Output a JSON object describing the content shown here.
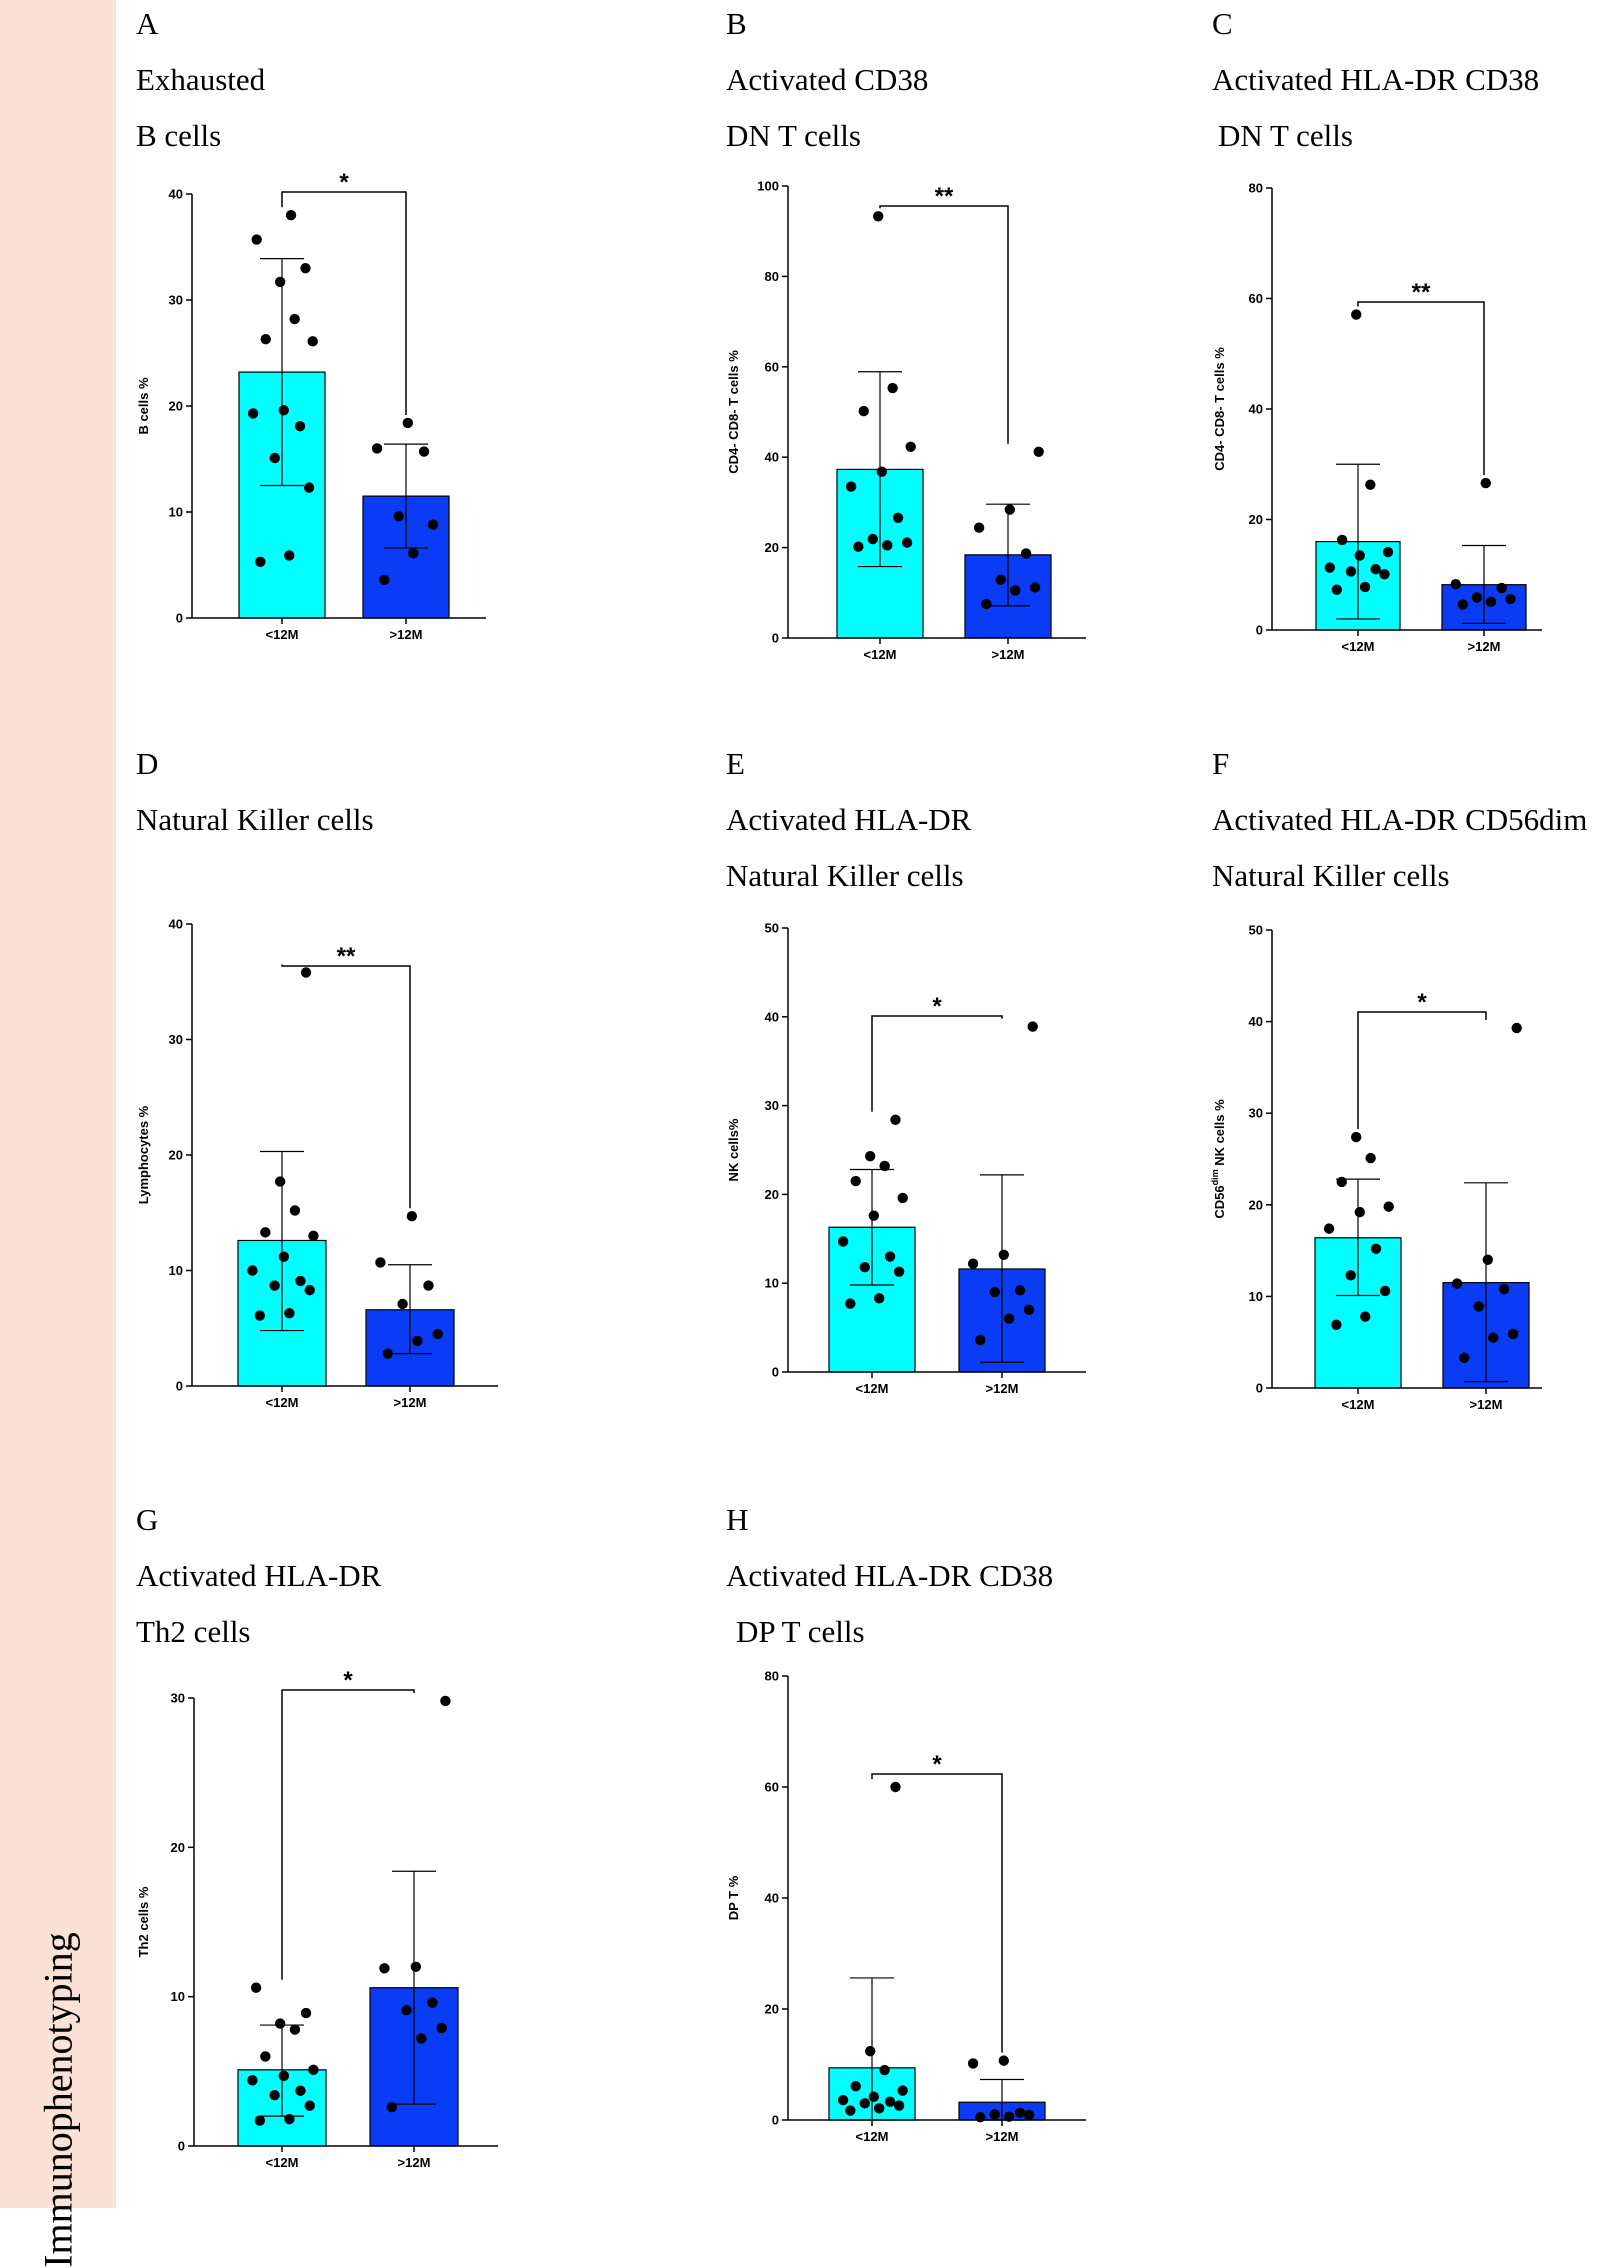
{
  "side_label": "Immunophenotyping",
  "colors": {
    "lt12": "#00ffff",
    "gt12": "#0a3cf5",
    "background": "#fae2d6"
  },
  "chart_data": [
    {
      "type": "bar",
      "letter": "A",
      "title_line1": "Exhausted",
      "title_line2": "B cells",
      "ylabel": "B cells %",
      "yticks": [
        0,
        10,
        20,
        30,
        40
      ],
      "ylim": [
        0,
        40
      ],
      "categories": [
        "<12M",
        ">12M"
      ],
      "series": [
        {
          "name": "<12M",
          "value": 23.2,
          "error": [
            12.5,
            33.9
          ],
          "points": [
            5.3,
            5.9,
            12.3,
            15.1,
            18.1,
            19.3,
            19.6,
            26.1,
            26.3,
            28.2,
            31.7,
            33.0,
            35.7,
            38.0
          ]
        },
        {
          "name": ">12M",
          "value": 11.5,
          "error": [
            6.6,
            16.4
          ],
          "points": [
            3.6,
            6.1,
            8.8,
            9.6,
            15.7,
            16.0,
            18.4
          ]
        }
      ],
      "significance": "*"
    },
    {
      "type": "bar",
      "letter": "B",
      "title_line1": "Activated CD38",
      "title_line2": "DN T cells",
      "ylabel": "CD4- CD8- T cells %",
      "yticks": [
        0,
        20,
        40,
        60,
        80,
        100
      ],
      "ylim": [
        0,
        100
      ],
      "categories": [
        "<12M",
        ">12M"
      ],
      "series": [
        {
          "name": "<12M",
          "value": 37.3,
          "error": [
            15.8,
            58.9
          ],
          "points": [
            20.2,
            20.5,
            21.1,
            21.9,
            26.6,
            33.5,
            36.8,
            42.3,
            50.2,
            55.3,
            93.3
          ]
        },
        {
          "name": ">12M",
          "value": 18.4,
          "error": [
            7.1,
            29.6
          ],
          "points": [
            7.5,
            10.5,
            11.2,
            12.9,
            18.7,
            24.4,
            28.4,
            41.2
          ]
        }
      ],
      "significance": "**"
    },
    {
      "type": "bar",
      "letter": "C",
      "title_line1": "Activated HLA-DR CD38",
      "title_line2": "DN T cells",
      "ylabel": "CD4- CD8- T cells %",
      "yticks": [
        0,
        20,
        40,
        60,
        80
      ],
      "ylim": [
        0,
        80
      ],
      "categories": [
        "<12M",
        ">12M"
      ],
      "series": [
        {
          "name": "<12M",
          "value": 16.0,
          "error": [
            2.0,
            30.0
          ],
          "points": [
            7.3,
            7.8,
            10.1,
            10.6,
            11.0,
            11.3,
            13.5,
            14.1,
            16.3,
            26.3,
            57.1
          ]
        },
        {
          "name": ">12M",
          "value": 8.2,
          "error": [
            1.2,
            15.3
          ],
          "points": [
            4.6,
            5.1,
            5.6,
            5.9,
            7.6,
            8.3,
            26.6
          ]
        }
      ],
      "significance": "**"
    },
    {
      "type": "bar",
      "letter": "D",
      "title_line1": "Natural Killer cells",
      "title_line2": "",
      "ylabel": "Lymphocytes %",
      "yticks": [
        0,
        10,
        20,
        30,
        40
      ],
      "ylim": [
        0,
        40
      ],
      "categories": [
        "<12M",
        ">12M"
      ],
      "series": [
        {
          "name": "<12M",
          "value": 12.6,
          "error": [
            4.8,
            20.3
          ],
          "points": [
            6.1,
            6.3,
            8.3,
            8.7,
            9.1,
            10.0,
            11.2,
            13.0,
            13.3,
            15.2,
            17.7,
            35.8
          ]
        },
        {
          "name": ">12M",
          "value": 6.6,
          "error": [
            2.8,
            10.5
          ],
          "points": [
            2.8,
            3.9,
            4.5,
            7.1,
            8.7,
            10.7,
            14.7
          ]
        }
      ],
      "significance": "**"
    },
    {
      "type": "bar",
      "letter": "E",
      "title_line1": "Activated HLA-DR",
      "title_line2": "Natural Killer cells",
      "ylabel": "NK cells%",
      "yticks": [
        0,
        10,
        20,
        30,
        40,
        50
      ],
      "ylim": [
        0,
        50
      ],
      "categories": [
        "<12M",
        ">12M"
      ],
      "series": [
        {
          "name": "<12M",
          "value": 16.3,
          "error": [
            9.8,
            22.8
          ],
          "points": [
            7.7,
            8.3,
            11.3,
            11.8,
            13.0,
            14.7,
            17.6,
            19.6,
            21.5,
            23.2,
            24.3,
            28.4
          ]
        },
        {
          "name": ">12M",
          "value": 11.6,
          "error": [
            1.1,
            22.2
          ],
          "points": [
            3.6,
            6.0,
            7.0,
            9.0,
            9.2,
            12.2,
            13.2,
            38.9
          ]
        }
      ],
      "significance": "*"
    },
    {
      "type": "bar",
      "letter": "F",
      "title_line1": "Activated HLA-DR CD56dim",
      "title_line2": "Natural Killer cells",
      "ylabel": "CD56dim NK cells %",
      "yticks": [
        0,
        10,
        20,
        30,
        40,
        50
      ],
      "ylim": [
        0,
        50
      ],
      "categories": [
        "<12M",
        ">12M"
      ],
      "series": [
        {
          "name": "<12M",
          "value": 16.4,
          "error": [
            10.1,
            22.8
          ],
          "points": [
            6.9,
            7.8,
            10.6,
            12.3,
            15.2,
            17.4,
            19.2,
            19.8,
            22.5,
            25.1,
            27.4
          ]
        },
        {
          "name": ">12M",
          "value": 11.5,
          "error": [
            0.7,
            22.4
          ],
          "points": [
            3.3,
            5.5,
            5.9,
            8.9,
            10.8,
            11.4,
            14.0,
            39.3
          ]
        }
      ],
      "significance": "*"
    },
    {
      "type": "bar",
      "letter": "G",
      "title_line1": "Activated HLA-DR",
      "title_line2": "Th2 cells",
      "ylabel": "Th2 cells %",
      "yticks": [
        0,
        10,
        20,
        30
      ],
      "ylim": [
        0,
        30
      ],
      "categories": [
        "<12M",
        ">12M"
      ],
      "series": [
        {
          "name": "<12M",
          "value": 5.1,
          "error": [
            2.0,
            8.1
          ],
          "points": [
            1.7,
            1.8,
            2.7,
            3.4,
            3.7,
            4.4,
            4.7,
            5.1,
            6.0,
            7.8,
            8.2,
            8.9,
            10.6
          ]
        },
        {
          "name": ">12M",
          "value": 10.6,
          "error": [
            2.8,
            18.4
          ],
          "points": [
            2.6,
            7.2,
            7.9,
            9.1,
            9.6,
            11.9,
            12.0,
            29.8
          ]
        }
      ],
      "significance": "*"
    },
    {
      "type": "bar",
      "letter": "H",
      "title_line1": "Activated HLA-DR CD38",
      "title_line2": "DP T cells",
      "ylabel": "DP T %",
      "yticks": [
        0,
        20,
        40,
        60,
        80
      ],
      "ylim": [
        0,
        80
      ],
      "categories": [
        "<12M",
        ">12M"
      ],
      "series": [
        {
          "name": "<12M",
          "value": 9.4,
          "error": [
            0.0,
            25.6
          ],
          "points": [
            1.7,
            2.1,
            2.6,
            3.0,
            3.3,
            3.6,
            4.2,
            5.3,
            6.1,
            9.0,
            12.4,
            60.0
          ]
        },
        {
          "name": ">12M",
          "value": 3.2,
          "error": [
            0.0,
            7.3
          ],
          "points": [
            0.5,
            0.6,
            0.9,
            1.0,
            1.3,
            10.2,
            10.7
          ]
        }
      ],
      "significance": "*"
    }
  ]
}
